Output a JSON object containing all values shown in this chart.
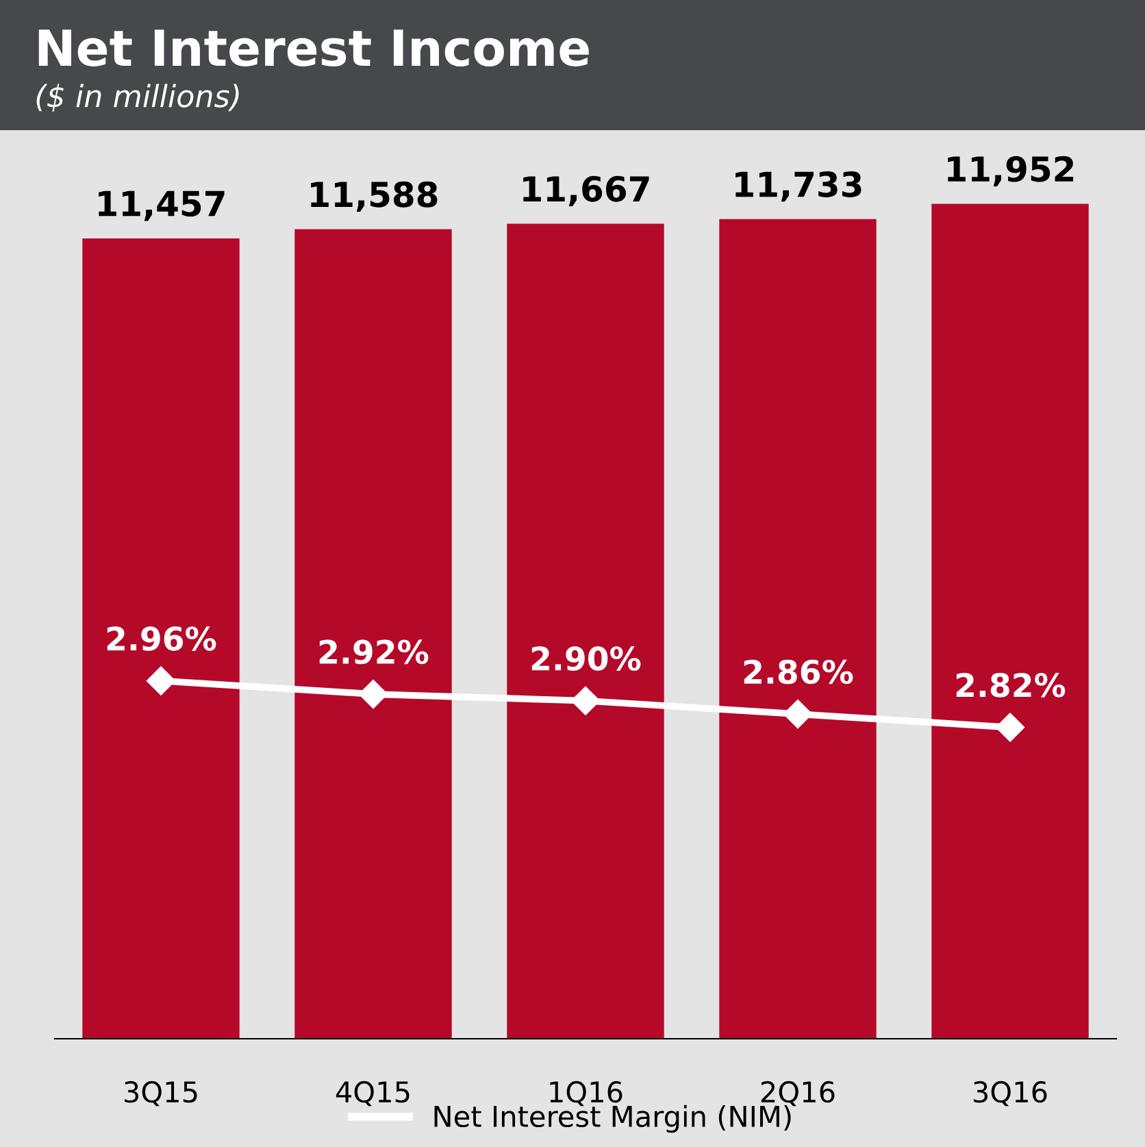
{
  "chart_data": {
    "type": "bar",
    "title": "Net Interest Income",
    "subtitle": "($ in millions)",
    "categories": [
      "3Q15",
      "4Q15",
      "1Q16",
      "2Q16",
      "3Q16"
    ],
    "series": [
      {
        "color": "#b5092a",
        "values": [
          11457,
          11588,
          11667,
          11733,
          11952
        ],
        "value_labels": [
          "11,457",
          "11,588",
          "11,667",
          "11,733",
          "11,952"
        ]
      },
      {
        "type": "line",
        "name": "Net Interest Margin (NIM)",
        "axis": "y2",
        "color": "#ffffff",
        "values": [
          2.96,
          2.92,
          2.9,
          2.86,
          2.82
        ],
        "value_labels": [
          "2.96%",
          "2.92%",
          "2.90%",
          "2.86%",
          "2.82%"
        ]
      }
    ],
    "tick_labels": "x",
    "data_labels": true,
    "marker": "diamond",
    "line_style": "solid",
    "legend": "bottom",
    "grid": false
  }
}
